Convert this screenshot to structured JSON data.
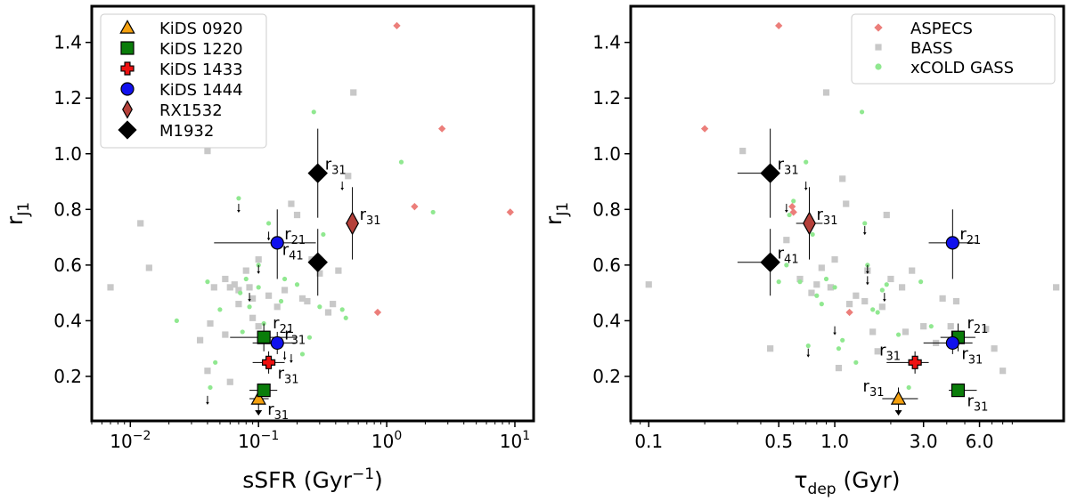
{
  "chart_data": [
    {
      "type": "scatter",
      "xlabel": "sSFR (Gyr$^{-1}$)",
      "xlabel_parts": {
        "main": "sSFR (Gyr",
        "sup": "−1",
        "close": ")"
      },
      "ylabel_parts": {
        "main": "r",
        "sub": "J1"
      },
      "xscale": "log",
      "xlim": [
        0.005,
        14
      ],
      "ylim": [
        0.04,
        1.53
      ],
      "xticks": [
        {
          "value": 0.01,
          "base": "10",
          "exp": "−2"
        },
        {
          "value": 0.1,
          "base": "10",
          "exp": "−1"
        },
        {
          "value": 1,
          "base": "10",
          "exp": "0"
        },
        {
          "value": 10,
          "base": "10",
          "exp": "1"
        }
      ],
      "yticks": [
        "0.2",
        "0.4",
        "0.6",
        "0.8",
        "1.0",
        "1.2",
        "1.4"
      ],
      "legend": {
        "placement": "top-left",
        "entries": [
          {
            "label": "KiDS 0920",
            "marker": "triangle",
            "color": "#f5a10f"
          },
          {
            "label": "KiDS 1220",
            "marker": "square",
            "color": "#0a7d0a"
          },
          {
            "label": "KiDS 1433",
            "marker": "plus",
            "color": "#ee1111"
          },
          {
            "label": "KiDS 1444",
            "marker": "circle",
            "color": "#1111ee"
          },
          {
            "label": "RX1532",
            "marker": "thin_diamond",
            "color": "#b5403a"
          },
          {
            "label": "M1932",
            "marker": "diamond",
            "color": "#000000"
          }
        ]
      },
      "background_series": [
        {
          "name": "ASPECS",
          "color": "#ec7e7a",
          "marker": "diamond",
          "points": [
            [
              1.2,
              1.46
            ],
            [
              2.7,
              1.09
            ],
            [
              1.65,
              0.81
            ],
            [
              9.2,
              0.79
            ],
            [
              0.85,
              0.43
            ]
          ]
        },
        {
          "name": "BASS",
          "color": "#c8c8c8",
          "marker": "square",
          "points": [
            [
              0.007,
              0.52
            ],
            [
              0.012,
              0.75
            ],
            [
              0.014,
              0.59
            ],
            [
              0.04,
              1.01
            ],
            [
              0.035,
              0.33
            ],
            [
              0.042,
              0.39
            ],
            [
              0.045,
              0.52
            ],
            [
              0.055,
              0.55
            ],
            [
              0.06,
              0.52
            ],
            [
              0.065,
              0.53
            ],
            [
              0.07,
              0.51
            ],
            [
              0.08,
              0.58
            ],
            [
              0.085,
              0.52
            ],
            [
              0.09,
              0.48
            ],
            [
              0.1,
              0.62
            ],
            [
              0.12,
              0.49
            ],
            [
              0.14,
              0.45
            ],
            [
              0.16,
              0.51
            ],
            [
              0.18,
              0.82
            ],
            [
              0.2,
              0.78
            ],
            [
              0.22,
              0.48
            ],
            [
              0.24,
              0.47
            ],
            [
              0.26,
              0.62
            ],
            [
              0.3,
              0.57
            ],
            [
              0.35,
              0.43
            ],
            [
              0.38,
              0.46
            ],
            [
              0.42,
              0.58
            ],
            [
              0.5,
              0.92
            ],
            [
              0.55,
              1.22
            ],
            [
              0.04,
              0.22
            ],
            [
              0.06,
              0.18
            ],
            [
              0.07,
              0.46
            ],
            [
              0.09,
              0.41
            ],
            [
              0.1,
              0.38
            ],
            [
              0.055,
              0.35
            ]
          ]
        },
        {
          "name": "xCOLD GASS",
          "color": "#90e890",
          "marker": "circle",
          "points": [
            [
              0.023,
              0.4
            ],
            [
              0.04,
              0.54
            ],
            [
              0.042,
              0.16
            ],
            [
              0.046,
              0.25
            ],
            [
              0.05,
              0.44
            ],
            [
              0.07,
              0.84
            ],
            [
              0.072,
              0.5
            ],
            [
              0.075,
              0.36
            ],
            [
              0.08,
              0.55
            ],
            [
              0.085,
              0.45
            ],
            [
              0.1,
              0.6
            ],
            [
              0.1,
              0.52
            ],
            [
              0.11,
              0.39
            ],
            [
              0.12,
              0.75
            ],
            [
              0.15,
              0.47
            ],
            [
              0.16,
              0.55
            ],
            [
              0.2,
              0.53
            ],
            [
              0.22,
              0.28
            ],
            [
              0.25,
              0.34
            ],
            [
              0.3,
              0.45
            ],
            [
              0.32,
              0.71
            ],
            [
              0.45,
              0.44
            ],
            [
              0.48,
              0.41
            ],
            [
              1.3,
              0.97
            ],
            [
              2.3,
              0.79
            ],
            [
              0.27,
              1.15
            ]
          ]
        }
      ],
      "upper_limit_points": [
        [
          0.07,
          0.82
        ],
        [
          0.085,
          0.5
        ],
        [
          0.1,
          0.6
        ],
        [
          0.12,
          0.72
        ],
        [
          0.16,
          0.29
        ],
        [
          0.18,
          0.28
        ],
        [
          0.45,
          0.9
        ],
        [
          0.04,
          0.13
        ]
      ],
      "main_points": [
        {
          "label": "KiDS 0920",
          "x": 0.1,
          "y": 0.12,
          "xerr": [
            0.085,
            0.12
          ],
          "yerr": [
            0.12,
            0.16
          ],
          "upper_limit": true,
          "annot": "r31",
          "annot_pos": "right-below"
        },
        {
          "label": "KiDS 1220",
          "x": 0.11,
          "y": 0.15,
          "xerr": [
            0.085,
            0.14
          ],
          "yerr": [
            0.14,
            0.17
          ],
          "annot": "",
          "annot_pos": ""
        },
        {
          "label": "KiDS 1433",
          "x": 0.12,
          "y": 0.25,
          "xerr": [
            0.09,
            0.16
          ],
          "yerr": [
            0.21,
            0.29
          ],
          "annot": "r31",
          "annot_pos": "right-below"
        },
        {
          "label": "KiDS 1220",
          "x": 0.11,
          "y": 0.34,
          "xerr": [
            0.06,
            0.2
          ],
          "yerr": [
            0.29,
            0.39
          ],
          "annot": "r21",
          "annot_pos": "right-above"
        },
        {
          "label": "KiDS 1444",
          "x": 0.14,
          "y": 0.32,
          "xerr": [
            0.09,
            0.2
          ],
          "yerr": [
            0.28,
            0.36
          ],
          "annot": "r31",
          "annot_pos": "right"
        },
        {
          "label": "KiDS 1444",
          "x": 0.14,
          "y": 0.68,
          "xerr": [
            0.045,
            0.28
          ],
          "yerr": [
            0.55,
            0.8
          ],
          "annot": "r21",
          "annot_pos": "right"
        },
        {
          "label": "RX1532",
          "x": 0.54,
          "y": 0.75,
          "xerr": [
            0.48,
            0.6
          ],
          "yerr": [
            0.62,
            0.88
          ],
          "annot": "r31",
          "annot_pos": "right"
        },
        {
          "label": "M1932",
          "x": 0.29,
          "y": 0.93,
          "xerr": [
            0.29,
            0.29
          ],
          "yerr": [
            0.77,
            1.09
          ],
          "annot": "r31",
          "annot_pos": "right"
        },
        {
          "label": "M1932",
          "x": 0.29,
          "y": 0.61,
          "xerr": [
            0.29,
            0.29
          ],
          "yerr": [
            0.49,
            0.73
          ],
          "annot": "r41",
          "annot_pos": "left-above"
        }
      ]
    },
    {
      "type": "scatter",
      "xlabel": "$\\tau_{dep}$ (Gyr)",
      "xlabel_parts": {
        "main": "τ",
        "sub": "dep",
        "close": " (Gyr)"
      },
      "ylabel_parts": {
        "main": "r",
        "sub": "J1"
      },
      "xscale": "log",
      "xlim": [
        0.08,
        17
      ],
      "ylim": [
        0.04,
        1.53
      ],
      "xticks": [
        {
          "value": 0.1,
          "label": "0.1"
        },
        {
          "value": 0.5,
          "label": "0.5"
        },
        {
          "value": 1.0,
          "label": "1.0"
        },
        {
          "value": 3.0,
          "label": "3.0"
        },
        {
          "value": 6.0,
          "label": "6.0"
        }
      ],
      "yticks": [
        "0.2",
        "0.4",
        "0.6",
        "0.8",
        "1.0",
        "1.2",
        "1.4"
      ],
      "legend": {
        "placement": "top-right",
        "entries": [
          {
            "label": "ASPECS",
            "marker": "diamond",
            "color": "#ec7e7a"
          },
          {
            "label": "BASS",
            "marker": "square",
            "color": "#c8c8c8"
          },
          {
            "label": "xCOLD GASS",
            "marker": "circle",
            "color": "#90e890"
          }
        ]
      },
      "background_series": [
        {
          "name": "ASPECS",
          "color": "#ec7e7a",
          "marker": "diamond",
          "points": [
            [
              0.5,
              1.46
            ],
            [
              0.2,
              1.09
            ],
            [
              0.59,
              0.81
            ],
            [
              0.6,
              0.79
            ],
            [
              1.2,
              0.43
            ]
          ]
        },
        {
          "name": "BASS",
          "color": "#c8c8c8",
          "marker": "square",
          "points": [
            [
              0.1,
              0.53
            ],
            [
              0.32,
              1.01
            ],
            [
              0.45,
              0.3
            ],
            [
              0.55,
              0.69
            ],
            [
              0.65,
              0.55
            ],
            [
              0.75,
              0.5
            ],
            [
              0.8,
              0.53
            ],
            [
              0.85,
              0.59
            ],
            [
              0.9,
              1.22
            ],
            [
              0.95,
              0.52
            ],
            [
              1.0,
              0.62
            ],
            [
              1.05,
              0.23
            ],
            [
              1.1,
              0.91
            ],
            [
              1.15,
              0.82
            ],
            [
              1.2,
              0.46
            ],
            [
              1.3,
              0.49
            ],
            [
              1.45,
              0.47
            ],
            [
              1.5,
              0.58
            ],
            [
              1.6,
              0.36
            ],
            [
              1.7,
              0.29
            ],
            [
              1.8,
              0.45
            ],
            [
              1.9,
              0.78
            ],
            [
              2.0,
              0.55
            ],
            [
              2.3,
              0.52
            ],
            [
              2.4,
              0.36
            ],
            [
              2.6,
              0.58
            ],
            [
              3.0,
              0.38
            ],
            [
              3.5,
              0.32
            ],
            [
              3.8,
              0.48
            ],
            [
              4.2,
              0.38
            ],
            [
              4.5,
              0.47
            ],
            [
              6.5,
              0.37
            ],
            [
              7.2,
              0.3
            ],
            [
              8.0,
              0.22
            ],
            [
              15.5,
              0.52
            ]
          ]
        },
        {
          "name": "xCOLD GASS",
          "color": "#90e890",
          "marker": "circle",
          "points": [
            [
              0.5,
              0.54
            ],
            [
              0.57,
              0.78
            ],
            [
              0.6,
              0.83
            ],
            [
              0.7,
              0.97
            ],
            [
              0.72,
              0.31
            ],
            [
              0.76,
              0.71
            ],
            [
              0.8,
              0.49
            ],
            [
              0.85,
              0.46
            ],
            [
              0.9,
              0.55
            ],
            [
              1.0,
              0.52
            ],
            [
              1.05,
              0.3
            ],
            [
              1.1,
              0.33
            ],
            [
              1.3,
              0.25
            ],
            [
              1.4,
              1.15
            ],
            [
              1.45,
              0.75
            ],
            [
              1.5,
              0.6
            ],
            [
              1.6,
              0.44
            ],
            [
              1.7,
              0.43
            ],
            [
              1.8,
              0.51
            ],
            [
              1.9,
              0.53
            ],
            [
              2.2,
              0.35
            ],
            [
              2.5,
              0.16
            ],
            [
              2.9,
              0.54
            ],
            [
              3.3,
              0.38
            ],
            [
              0.55,
              0.6
            ],
            [
              0.65,
              0.54
            ]
          ]
        }
      ],
      "upper_limit_points": [
        [
          0.7,
          0.9
        ],
        [
          0.55,
          0.82
        ],
        [
          0.72,
          0.3
        ],
        [
          1.5,
          0.6
        ],
        [
          1.45,
          0.74
        ],
        [
          1.85,
          0.5
        ],
        [
          1.5,
          0.56
        ],
        [
          1.0,
          0.38
        ]
      ],
      "main_points": [
        {
          "label": "KiDS 0920",
          "x": 2.2,
          "y": 0.12,
          "xerr": [
            1.8,
            2.8
          ],
          "yerr": [
            0.12,
            0.16
          ],
          "upper_limit": true,
          "annot": "r31",
          "annot_pos": "left-above"
        },
        {
          "label": "KiDS 1220",
          "x": 4.6,
          "y": 0.15,
          "xerr": [
            4.1,
            5.8
          ],
          "yerr": [
            0.15,
            0.15
          ],
          "annot": "r31",
          "annot_pos": "right-below"
        },
        {
          "label": "KiDS 1433",
          "x": 2.7,
          "y": 0.25,
          "xerr": [
            1.9,
            3.2
          ],
          "yerr": [
            0.21,
            0.29
          ],
          "annot": "r31",
          "annot_pos": "left-above"
        },
        {
          "label": "KiDS 1220",
          "x": 4.6,
          "y": 0.34,
          "xerr": [
            3.7,
            5.7
          ],
          "yerr": [
            0.29,
            0.39
          ],
          "annot": "r21",
          "annot_pos": "right-above"
        },
        {
          "label": "KiDS 1444",
          "x": 4.3,
          "y": 0.32,
          "xerr": [
            3.0,
            5.5
          ],
          "yerr": [
            0.28,
            0.36
          ],
          "annot": "r31",
          "annot_pos": "right-below"
        },
        {
          "label": "KiDS 1444",
          "x": 4.3,
          "y": 0.68,
          "xerr": [
            3.2,
            5.8
          ],
          "yerr": [
            0.55,
            0.8
          ],
          "annot": "r21",
          "annot_pos": "right"
        },
        {
          "label": "RX1532",
          "x": 0.73,
          "y": 0.75,
          "xerr": [
            0.62,
            0.86
          ],
          "yerr": [
            0.62,
            0.88
          ],
          "annot": "r31",
          "annot_pos": "right"
        },
        {
          "label": "M1932",
          "x": 0.45,
          "y": 0.93,
          "xerr": [
            0.3,
            0.5
          ],
          "yerr": [
            0.77,
            1.09
          ],
          "annot": "r31",
          "annot_pos": "right"
        },
        {
          "label": "M1932",
          "x": 0.45,
          "y": 0.61,
          "xerr": [
            0.3,
            0.5
          ],
          "yerr": [
            0.49,
            0.73
          ],
          "annot": "r41",
          "annot_pos": "right"
        }
      ]
    }
  ]
}
